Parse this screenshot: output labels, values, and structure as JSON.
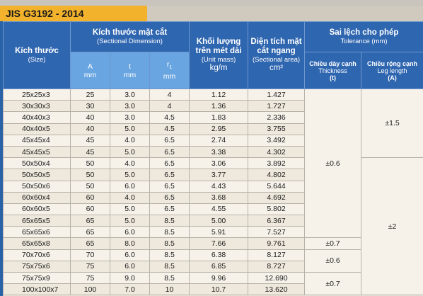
{
  "title": "JIS G3192 - 2014",
  "header": {
    "size_vi": "Kích thước",
    "size_en": "(Size)",
    "section_vi": "Kích thước mặt cắt",
    "section_en": "(Sectional Dimension)",
    "mass_vi": "Khối lượng trên mét dài",
    "mass_en": "(Unit mass)",
    "mass_unit": "kg/m",
    "area_vi": "Diện tích mặt cắt ngang",
    "area_en": "(Sectional area)",
    "area_unit": "cm²",
    "tol_vi": "Sai lệch cho phép",
    "tol_en": "Tolerance (mm)",
    "thick_vi": "Chiều dày cạnh",
    "thick_en": "Thickness",
    "thick_sym": "(t)",
    "leg_vi": "Chiều rộng cạnh",
    "leg_en": "Leg length",
    "leg_sym": "(A)",
    "col_a": "A",
    "col_t": "t",
    "col_r": "r",
    "col_r_sub": "1",
    "unit_mm": "mm"
  },
  "rows": [
    {
      "size": "25x25x3",
      "a": "25",
      "t": "3.0",
      "r": "4",
      "mass": "1.12",
      "area": "1.427"
    },
    {
      "size": "30x30x3",
      "a": "30",
      "t": "3.0",
      "r": "4",
      "mass": "1.36",
      "area": "1.727"
    },
    {
      "size": "40x40x3",
      "a": "40",
      "t": "3.0",
      "r": "4.5",
      "mass": "1.83",
      "area": "2.336"
    },
    {
      "size": "40x40x5",
      "a": "40",
      "t": "5.0",
      "r": "4.5",
      "mass": "2.95",
      "area": "3.755"
    },
    {
      "size": "45x45x4",
      "a": "45",
      "t": "4.0",
      "r": "6.5",
      "mass": "2.74",
      "area": "3.492"
    },
    {
      "size": "45x45x5",
      "a": "45",
      "t": "5.0",
      "r": "6.5",
      "mass": "3.38",
      "area": "4.302"
    },
    {
      "size": "50x50x4",
      "a": "50",
      "t": "4.0",
      "r": "6.5",
      "mass": "3.06",
      "area": "3.892"
    },
    {
      "size": "50x50x5",
      "a": "50",
      "t": "5.0",
      "r": "6.5",
      "mass": "3.77",
      "area": "4.802"
    },
    {
      "size": "50x50x6",
      "a": "50",
      "t": "6.0",
      "r": "6.5",
      "mass": "4.43",
      "area": "5.644"
    },
    {
      "size": "60x60x4",
      "a": "60",
      "t": "4.0",
      "r": "6.5",
      "mass": "3.68",
      "area": "4.692"
    },
    {
      "size": "60x60x5",
      "a": "60",
      "t": "5.0",
      "r": "6.5",
      "mass": "4.55",
      "area": "5.802"
    },
    {
      "size": "65x65x5",
      "a": "65",
      "t": "5.0",
      "r": "8.5",
      "mass": "5.00",
      "area": "6.367"
    },
    {
      "size": "65x65x6",
      "a": "65",
      "t": "6.0",
      "r": "8.5",
      "mass": "5.91",
      "area": "7.527"
    },
    {
      "size": "65x65x8",
      "a": "65",
      "t": "8.0",
      "r": "8.5",
      "mass": "7.66",
      "area": "9.761"
    },
    {
      "size": "70x70x6",
      "a": "70",
      "t": "6.0",
      "r": "8.5",
      "mass": "6.38",
      "area": "8.127"
    },
    {
      "size": "75x75x6",
      "a": "75",
      "t": "6.0",
      "r": "8.5",
      "mass": "6.85",
      "area": "8.727"
    },
    {
      "size": "75x75x9",
      "a": "75",
      "t": "9.0",
      "r": "8.5",
      "mass": "9.96",
      "area": "12.690"
    },
    {
      "size": "100x100x7",
      "a": "100",
      "t": "7.0",
      "r": "10",
      "mass": "10.7",
      "area": "13.620"
    }
  ],
  "tolerance": {
    "thickness": [
      "±0.6",
      "±0.7",
      "±0.6",
      "±0.7"
    ],
    "leg": [
      "±1.5",
      "±2"
    ]
  }
}
